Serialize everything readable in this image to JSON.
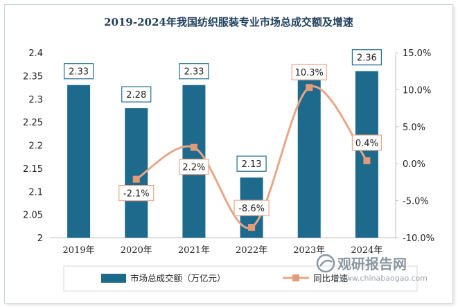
{
  "chart_data": {
    "type": "bar",
    "title": "2019-2024年我国纺织服装专业市场总成交额及增速",
    "categories": [
      "2019年",
      "2020年",
      "2021年",
      "2022年",
      "2023年",
      "2024年"
    ],
    "series": [
      {
        "name": "市场总成交额（万亿元）",
        "type": "bar",
        "axis": "left",
        "values": [
          2.33,
          2.28,
          2.33,
          2.13,
          2.35,
          2.36
        ],
        "labels": [
          "2.33",
          "2.28",
          "2.33",
          "2.13",
          "",
          "2.36"
        ],
        "color": "#1e6a8d"
      },
      {
        "name": "同比增速",
        "type": "line",
        "axis": "right",
        "values": [
          null,
          -2.1,
          2.2,
          -8.6,
          10.3,
          0.4
        ],
        "labels": [
          "",
          "-2.1%",
          "2.2%",
          "-8.6%",
          "10.3%",
          "0.4%"
        ],
        "color": "#e8a688"
      }
    ],
    "left_axis": {
      "ylim": [
        2,
        2.4
      ],
      "ticks": [
        "2",
        "2.05",
        "2.1",
        "2.15",
        "2.2",
        "2.25",
        "2.3",
        "2.35",
        "2.4"
      ]
    },
    "right_axis": {
      "ylim": [
        -10,
        15
      ],
      "ticks": [
        "-10.0%",
        "-5.0%",
        "0.0%",
        "5.0%",
        "10.0%",
        "15.0%"
      ]
    },
    "legend_position": "bottom",
    "grid": false
  },
  "watermark": {
    "brand": "观研报告网",
    "url": "www.chinabaogao.com",
    "icon": "brand-logo-icon"
  }
}
